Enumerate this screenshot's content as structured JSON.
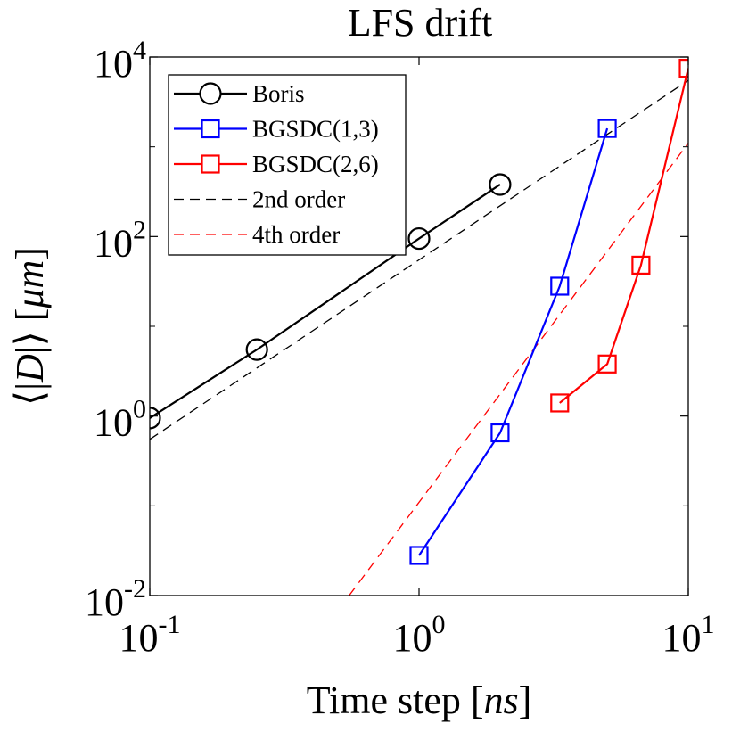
{
  "chart_data": {
    "type": "line",
    "title": "LFS drift",
    "xlabel": "Time step [ns]",
    "xlabel_parts": {
      "text": "Time step ",
      "lb": "[",
      "unit": "ns",
      "rb": "]"
    },
    "ylabel": "⟨|D|⟩ [μm]",
    "ylabel_parts": {
      "left": "⟨|",
      "var": "D",
      "mid": "|⟩ [",
      "unit": "μm",
      "right": "]"
    },
    "x_scale": "log",
    "y_scale": "log",
    "xlim": [
      0.1,
      10
    ],
    "ylim": [
      0.01,
      10000
    ],
    "x_ticks": [
      {
        "value": 0.1,
        "base": "10",
        "exp": "-1"
      },
      {
        "value": 1,
        "base": "10",
        "exp": "0"
      },
      {
        "value": 10,
        "base": "10",
        "exp": "1"
      }
    ],
    "y_ticks": [
      {
        "value": 0.01,
        "base": "10",
        "exp": "-2"
      },
      {
        "value": 1,
        "base": "10",
        "exp": "0"
      },
      {
        "value": 100,
        "base": "10",
        "exp": "2"
      },
      {
        "value": 10000,
        "base": "10",
        "exp": "4"
      }
    ],
    "y_minor_ticks": [
      0.1,
      10,
      1000
    ],
    "grid": false,
    "legend_position": "top-left",
    "series": [
      {
        "name": "Boris",
        "color": "#000000",
        "marker": "circle",
        "style": "solid",
        "x": [
          0.1,
          0.25,
          1,
          2
        ],
        "y": [
          0.95,
          5.5,
          95,
          380
        ]
      },
      {
        "name": "BGSDC(1,3)",
        "color": "#0000ff",
        "marker": "square",
        "style": "solid",
        "x": [
          1,
          2,
          3.33,
          5
        ],
        "y": [
          0.028,
          0.65,
          28,
          1600
        ]
      },
      {
        "name": "BGSDC(2,6)",
        "color": "#ff0000",
        "marker": "square",
        "style": "solid",
        "x": [
          3.33,
          5,
          6.67,
          10
        ],
        "y": [
          1.4,
          3.8,
          48,
          7500
        ]
      },
      {
        "name": "2nd order",
        "color": "#000000",
        "marker": "none",
        "style": "dashed",
        "x": [
          0.1,
          10
        ],
        "y": [
          0.55,
          5500
        ]
      },
      {
        "name": "4th order",
        "color": "#ff0000",
        "marker": "none",
        "style": "dashed",
        "x": [
          0.55,
          10
        ],
        "y": [
          0.01,
          1100
        ]
      }
    ]
  }
}
